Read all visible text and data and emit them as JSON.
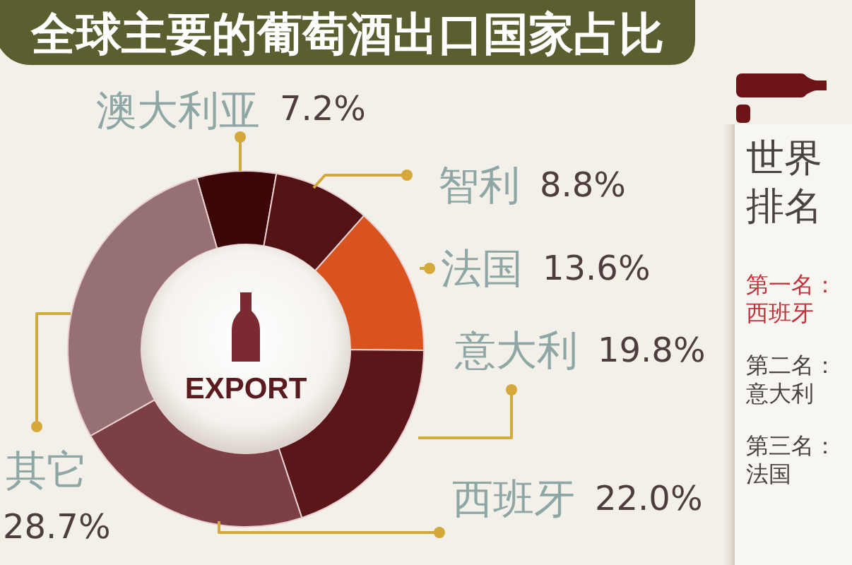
{
  "chart_data": {
    "type": "donut",
    "title": "全球主要的葡萄酒出口国家占比",
    "categories": [
      "澳大利亚",
      "智利",
      "法国",
      "意大利",
      "西班牙",
      "其它"
    ],
    "values": [
      7.2,
      8.8,
      13.6,
      19.8,
      22.0,
      28.7
    ],
    "colors": [
      "#3c0608",
      "#531214",
      "#d9531e",
      "#5a1619",
      "#7c3f45",
      "#977073"
    ],
    "value_labels": [
      "7.2%",
      "8.8%",
      "13.6%",
      "19.8%",
      "22.0%",
      "28.7%"
    ],
    "annotations": [
      "EXPORT",
      "世界排名",
      "第一名：西班牙",
      "第二名：意大利",
      "第三名：法国"
    ]
  }
}
